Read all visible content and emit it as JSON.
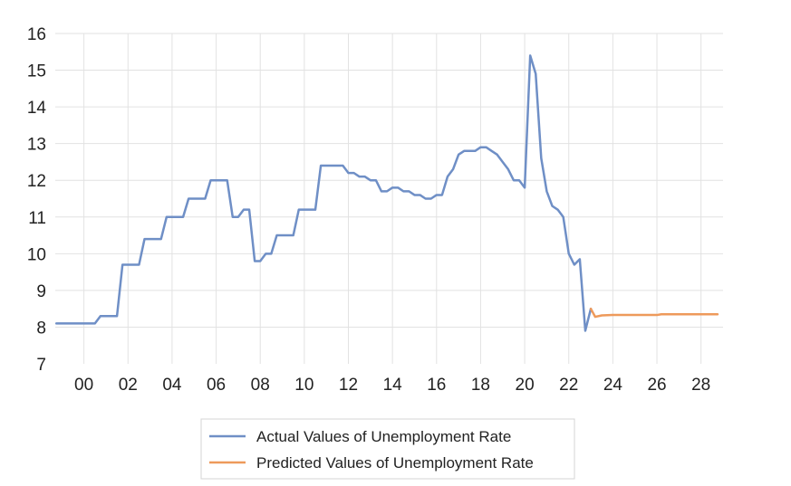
{
  "chart_data": {
    "type": "line",
    "title": "",
    "xlabel": "",
    "ylabel": "",
    "xlim": [
      1998.7,
      2029.0
    ],
    "ylim": [
      7,
      16
    ],
    "yticks": [
      7,
      8,
      9,
      10,
      11,
      12,
      13,
      14,
      15,
      16
    ],
    "xticks": [
      {
        "value": 2000,
        "label": "00"
      },
      {
        "value": 2002,
        "label": "02"
      },
      {
        "value": 2004,
        "label": "04"
      },
      {
        "value": 2006,
        "label": "06"
      },
      {
        "value": 2008,
        "label": "08"
      },
      {
        "value": 2010,
        "label": "10"
      },
      {
        "value": 2012,
        "label": "12"
      },
      {
        "value": 2014,
        "label": "14"
      },
      {
        "value": 2016,
        "label": "16"
      },
      {
        "value": 2018,
        "label": "18"
      },
      {
        "value": 2020,
        "label": "20"
      },
      {
        "value": 2022,
        "label": "22"
      },
      {
        "value": 2024,
        "label": "24"
      },
      {
        "value": 2026,
        "label": "26"
      },
      {
        "value": 2028,
        "label": "28"
      }
    ],
    "grid": true,
    "legend_position": "bottom",
    "series": [
      {
        "name": "Actual Values of Unemployment Rate",
        "color": "#6f8fc6",
        "x": [
          1998.75,
          2000.5,
          2000.75,
          2001.5,
          2001.75,
          2002.5,
          2002.75,
          2003.5,
          2003.75,
          2004.5,
          2004.75,
          2005.5,
          2005.75,
          2006.5,
          2006.75,
          2007.0,
          2007.25,
          2007.5,
          2007.75,
          2008.0,
          2008.25,
          2008.5,
          2008.75,
          2009.5,
          2009.75,
          2010.5,
          2010.75,
          2011.5,
          2011.75,
          2012.0,
          2012.25,
          2012.5,
          2012.75,
          2013.0,
          2013.25,
          2013.5,
          2013.75,
          2014.0,
          2014.25,
          2014.5,
          2014.75,
          2015.0,
          2015.25,
          2015.5,
          2015.75,
          2016.0,
          2016.25,
          2016.5,
          2016.75,
          2017.0,
          2017.25,
          2017.5,
          2017.75,
          2018.0,
          2018.25,
          2018.5,
          2018.75,
          2019.0,
          2019.25,
          2019.5,
          2019.75,
          2020.0,
          2020.25,
          2020.5,
          2020.75,
          2021.0,
          2021.25,
          2021.5,
          2021.75,
          2022.0,
          2022.25,
          2022.5,
          2022.75,
          2023.0
        ],
        "values": [
          8.1,
          8.1,
          8.3,
          8.3,
          9.7,
          9.7,
          10.4,
          10.4,
          11.0,
          11.0,
          11.5,
          11.5,
          12.0,
          12.0,
          11.0,
          11.0,
          11.2,
          11.2,
          9.8,
          9.8,
          10.0,
          10.0,
          10.5,
          10.5,
          11.2,
          11.2,
          12.4,
          12.4,
          12.4,
          12.2,
          12.2,
          12.1,
          12.1,
          12.0,
          12.0,
          11.7,
          11.7,
          11.8,
          11.8,
          11.7,
          11.7,
          11.6,
          11.6,
          11.5,
          11.5,
          11.6,
          11.6,
          12.1,
          12.3,
          12.7,
          12.8,
          12.8,
          12.8,
          12.9,
          12.9,
          12.8,
          12.7,
          12.5,
          12.3,
          12.0,
          12.0,
          11.8,
          15.4,
          14.9,
          12.6,
          11.7,
          11.3,
          11.2,
          11.0,
          10.0,
          9.7,
          9.85,
          7.9,
          8.5
        ]
      },
      {
        "name": "Predicted Values of Unemployment Rate",
        "color": "#ee9a5b",
        "x": [
          2023.0,
          2023.2,
          2023.5,
          2024.0,
          2024.5,
          2025.0,
          2025.5,
          2026.0,
          2026.2,
          2026.5,
          2027.0,
          2027.5,
          2028.0,
          2028.5,
          2028.75
        ],
        "values": [
          8.5,
          8.28,
          8.32,
          8.33,
          8.33,
          8.33,
          8.33,
          8.33,
          8.35,
          8.35,
          8.35,
          8.35,
          8.35,
          8.35,
          8.35
        ]
      }
    ]
  }
}
